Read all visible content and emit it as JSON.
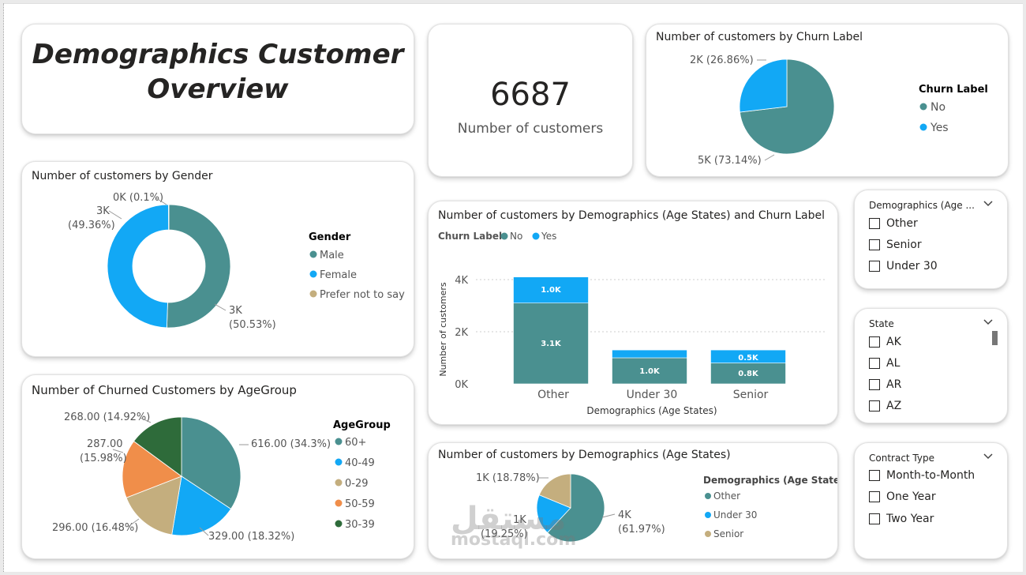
{
  "title": {
    "line1": "Demographics Customer",
    "line2": "Overview"
  },
  "kpi": {
    "value": "6687",
    "label": "Number of customers"
  },
  "churn_pie": {
    "title": "Number of customers by Churn Label",
    "legend_title": "Churn Label",
    "labels": [
      "2K (26.86%)",
      "5K (73.14%)"
    ],
    "legend": [
      "No",
      "Yes"
    ]
  },
  "gender": {
    "title": "Number of customers by Gender",
    "legend_title": "Gender",
    "legend": [
      "Male",
      "Female",
      "Prefer not to say"
    ],
    "label_small": "0K (0.1%)",
    "label_female_1": "3K",
    "label_female_2": "(49.36%)",
    "label_male_1": "3K",
    "label_male_2": "(50.53%)"
  },
  "age_churn": {
    "title": "Number of customers by Demographics (Age States) and Churn Label",
    "legend_title": "Churn Label",
    "legend": [
      "No",
      "Yes"
    ],
    "ylabel": "Number of customers",
    "xlabel": "Demographics (Age States)",
    "yticks": [
      "4K",
      "2K",
      "0K"
    ],
    "categories": [
      "Other",
      "Under 30",
      "Senior"
    ],
    "bar_labels": {
      "other_no": "3.1K",
      "other_yes": "1.0K",
      "u30_no": "1.0K",
      "senior_no": "0.8K",
      "senior_yes": "0.5K"
    }
  },
  "agegroup": {
    "title": "Number of Churned Customers by AgeGroup",
    "legend_title": "AgeGroup",
    "legend": [
      "60+",
      "40-49",
      "0-29",
      "50-59",
      "30-39"
    ],
    "labels": {
      "a1": "616.00 (34.3%)",
      "a2": "329.00 (18.32%)",
      "a3": "296.00 (16.48%)",
      "a4_1": "287.00",
      "a4_2": "(15.98%)",
      "a5": "268.00 (14.92%)"
    }
  },
  "age_states": {
    "title": "Number of customers by Demographics (Age States)",
    "legend_title": "Demographics (Age States)",
    "legend": [
      "Other",
      "Under 30",
      "Senior"
    ],
    "labels": {
      "senior": "1K (18.78%)",
      "u30_1": "1K",
      "u30_2": "(19.25%)",
      "other_1": "4K",
      "other_2": "(61.97%)"
    }
  },
  "slicer_age": {
    "title": "Demographics (Age ...",
    "options": [
      "Other",
      "Senior",
      "Under 30"
    ]
  },
  "slicer_state": {
    "title": "State",
    "options": [
      "AK",
      "AL",
      "AR",
      "AZ"
    ]
  },
  "slicer_contract": {
    "title": "Contract Type",
    "options": [
      "Month-to-Month",
      "One Year",
      "Two Year"
    ]
  },
  "watermark": {
    "arabic": "مستقل",
    "latin": "mostaql.com"
  },
  "chart_data": [
    {
      "type": "pie",
      "title": "Number of customers by Churn Label",
      "categories": [
        "No",
        "Yes"
      ],
      "values": [
        4891,
        1796
      ],
      "percent": [
        73.14,
        26.86
      ],
      "colors": [
        "#4a9090",
        "#12a8f5"
      ]
    },
    {
      "type": "pie",
      "title": "Number of customers by Gender",
      "categories": [
        "Male",
        "Female",
        "Prefer not to say"
      ],
      "percent": [
        50.53,
        49.36,
        0.1
      ],
      "colors": [
        "#4a9090",
        "#12a8f5",
        "#c4ae7e"
      ]
    },
    {
      "type": "bar",
      "title": "Number of customers by Demographics (Age States) and Churn Label",
      "categories": [
        "Other",
        "Under 30",
        "Senior"
      ],
      "series": [
        {
          "name": "No",
          "values": [
            3100,
            1000,
            800
          ]
        },
        {
          "name": "Yes",
          "values": [
            1000,
            300,
            500
          ]
        }
      ],
      "ylim": [
        0,
        4000
      ],
      "xlabel": "Demographics (Age States)",
      "ylabel": "Number of customers"
    },
    {
      "type": "pie",
      "title": "Number of Churned Customers by AgeGroup",
      "categories": [
        "60+",
        "40-49",
        "0-29",
        "50-59",
        "30-39"
      ],
      "values": [
        616,
        329,
        296,
        287,
        268
      ],
      "percent": [
        34.3,
        18.32,
        16.48,
        15.98,
        14.92
      ],
      "colors": [
        "#4a9090",
        "#12a8f5",
        "#c4ae7e",
        "#f08e4a",
        "#2e6b3a"
      ]
    },
    {
      "type": "pie",
      "title": "Number of customers by Demographics (Age States)",
      "categories": [
        "Other",
        "Under 30",
        "Senior"
      ],
      "percent": [
        61.97,
        19.25,
        18.78
      ],
      "colors": [
        "#4a9090",
        "#12a8f5",
        "#c4ae7e"
      ]
    }
  ]
}
